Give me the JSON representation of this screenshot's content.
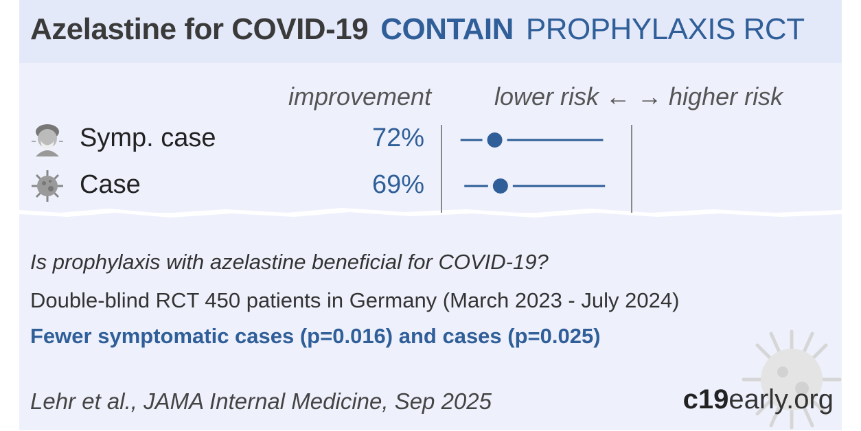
{
  "header": {
    "drug_title": "Azelastine for COVID-19",
    "trial_name": "CONTAIN",
    "study_kind": "PROPHYLAXIS RCT"
  },
  "columns": {
    "improvement": "improvement",
    "direction": "lower risk ← → higher risk"
  },
  "chart_data": {
    "type": "forest",
    "rows": [
      {
        "label": "Symp. case",
        "icon": "sneezing-person-icon",
        "improvement": "72%",
        "relative_risk": 0.28
      },
      {
        "label": "Case",
        "icon": "virus-icon",
        "improvement": "69%",
        "relative_risk": 0.31
      }
    ],
    "reference_line": 1.0,
    "colors": {
      "point": "#2f5e98",
      "axis": "#888888"
    }
  },
  "summary": {
    "question": "Is prophylaxis with azelastine beneficial for COVID-19?",
    "design": "Double-blind RCT 450 patients in Germany (March 2023 - July 2024)",
    "result": "Fewer symptomatic cases (p=0.016) and cases (p=0.025)"
  },
  "footer": {
    "citation": "Lehr et al., JAMA Internal Medicine, Sep 2025",
    "brand_bold": "c19",
    "brand_rest": "early.org"
  },
  "icons": {
    "background": "virus-icon"
  },
  "colors": {
    "accent": "#2f5e98",
    "header_bg": "#e4e9f9",
    "panel_bg": "#eef1fc"
  }
}
